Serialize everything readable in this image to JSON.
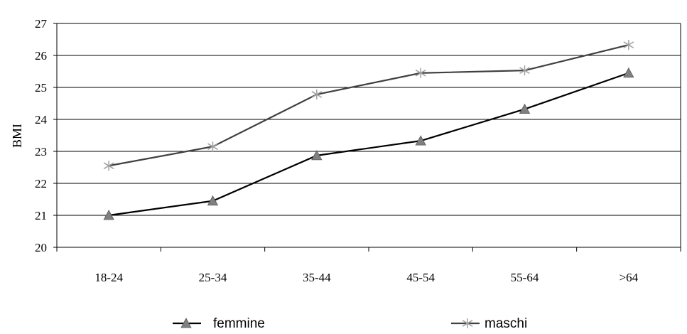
{
  "chart_data": {
    "type": "line",
    "title": "",
    "xlabel": "",
    "ylabel": "BMI",
    "ylim": [
      20,
      27
    ],
    "yticks": [
      20,
      21,
      22,
      23,
      24,
      25,
      26,
      27
    ],
    "categories": [
      "18-24",
      "25-34",
      "35-44",
      "45-54",
      "55-64",
      ">64"
    ],
    "grid": "horizontal",
    "legend_position": "bottom",
    "series": [
      {
        "name": "femmine",
        "values": [
          21.0,
          21.45,
          22.87,
          23.33,
          24.32,
          25.45
        ],
        "color": "#000000",
        "marker": "triangle",
        "marker_color": "#808080"
      },
      {
        "name": "maschi",
        "values": [
          22.55,
          23.15,
          24.78,
          25.45,
          25.53,
          26.33
        ],
        "color": "#404040",
        "marker": "asterisk",
        "marker_color": "#a0a0a0"
      }
    ]
  }
}
